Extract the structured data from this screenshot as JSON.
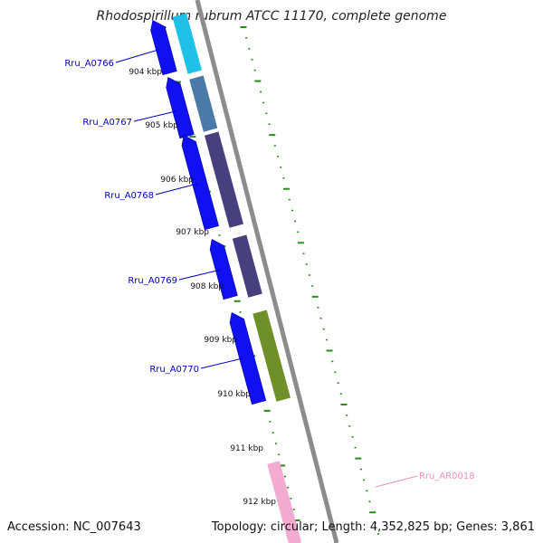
{
  "title": "Rhodospirillum rubrum ATCC 11170, complete genome",
  "accession": "Accession: NC_007643",
  "summary": "Topology: circular; Length: 4,352,825 bp; Genes: 3,861",
  "ticks": [
    "904 kbp",
    "905 kbp",
    "906 kbp",
    "907 kbp",
    "908 kbp",
    "909 kbp",
    "910 kbp",
    "911 kbp",
    "912 kbp"
  ],
  "genes": [
    {
      "id": "Rru_A0766",
      "color": "#1fc1e8"
    },
    {
      "id": "Rru_A0767",
      "color": "#4a7aa8"
    },
    {
      "id": "Rru_A0768",
      "color": "#46407e"
    },
    {
      "id": "Rru_A0769",
      "color": "#46407e"
    },
    {
      "id": "Rru_A0770",
      "color": "#6f8f28"
    },
    {
      "id": "Rru_AR0018",
      "color": "#f3a6cf"
    }
  ],
  "colors": {
    "label_blue": "#0000bb",
    "label_pink": "#f090c0",
    "cds": "#1010f0",
    "backbone": "#8c8c8c",
    "tick_green": "#2a8a1a"
  }
}
